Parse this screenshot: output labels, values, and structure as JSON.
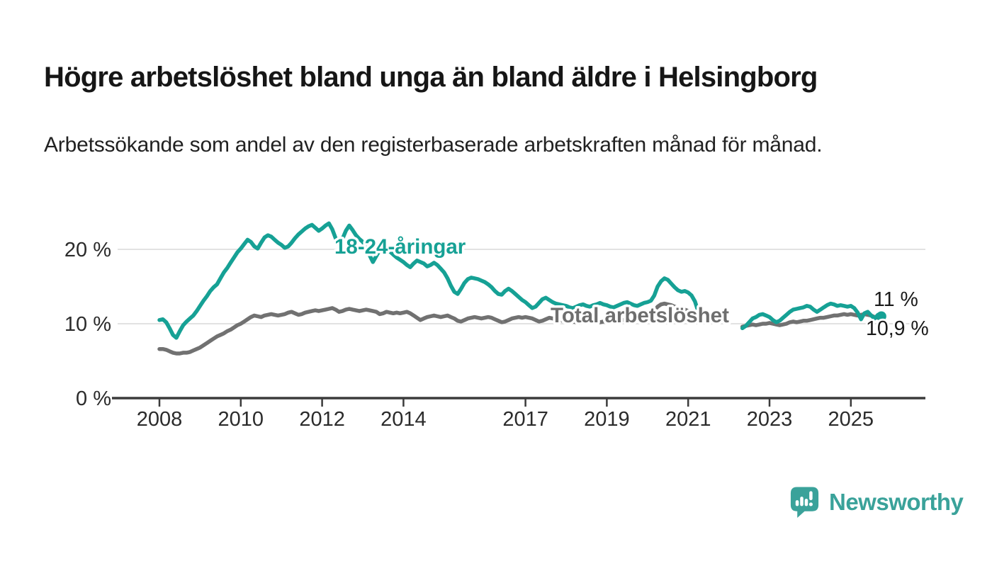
{
  "header": {
    "title": "Högre arbetslöshet bland unga än bland äldre i Helsingborg",
    "subtitle": "Arbetssökande som andel av den registerbaserade arbetskraften månad för månad."
  },
  "chart_data": {
    "type": "line",
    "title": "Högre arbetslöshet bland unga än bland äldre i Helsingborg",
    "subtitle": "Arbetssökande som andel av den registerbaserade arbetskraften månad för månad.",
    "unit": "%",
    "frequency": "monthly",
    "x_start": {
      "year": 2008,
      "month": 1
    },
    "x_end": {
      "year": 2025,
      "month": 10
    },
    "data_gap": {
      "from": "2021-05",
      "to": "2022-04"
    },
    "grid": "horizontal",
    "legend_position": "inline-labels",
    "ylim": [
      0,
      25.5
    ],
    "x_ticks": [
      "2008",
      "2010",
      "2012",
      "2014",
      "2017",
      "2019",
      "2021",
      "2023",
      "2025"
    ],
    "x_tick_years": [
      2008,
      2010,
      2012,
      2014,
      2017,
      2019,
      2021,
      2023,
      2025
    ],
    "y_ticks": [
      {
        "value": 0,
        "label": "0 %"
      },
      {
        "value": 10,
        "label": "10 %"
      },
      {
        "value": 20,
        "label": "20 %"
      }
    ],
    "series": [
      {
        "name": "Total arbetslöshet",
        "color": "#717171",
        "label_color": "#6e6e6e",
        "end_label": "10,9 %",
        "end_dot": false,
        "values": [
          6.6,
          6.6,
          6.5,
          6.3,
          6.1,
          6.0,
          6.0,
          6.1,
          6.1,
          6.2,
          6.4,
          6.6,
          6.8,
          7.1,
          7.4,
          7.7,
          8.0,
          8.3,
          8.5,
          8.7,
          9.0,
          9.2,
          9.5,
          9.8,
          10.0,
          10.3,
          10.6,
          10.9,
          11.1,
          11.0,
          10.9,
          11.1,
          11.2,
          11.3,
          11.2,
          11.1,
          11.2,
          11.3,
          11.5,
          11.6,
          11.4,
          11.2,
          11.3,
          11.5,
          11.6,
          11.7,
          11.8,
          11.7,
          11.8,
          11.9,
          12.0,
          12.1,
          11.9,
          11.6,
          11.7,
          11.9,
          12.0,
          11.9,
          11.8,
          11.7,
          11.8,
          11.9,
          11.8,
          11.7,
          11.6,
          11.3,
          11.4,
          11.6,
          11.5,
          11.4,
          11.5,
          11.4,
          11.5,
          11.6,
          11.4,
          11.1,
          10.8,
          10.5,
          10.7,
          10.9,
          11.0,
          11.1,
          11.0,
          10.9,
          11.0,
          11.1,
          10.9,
          10.7,
          10.4,
          10.3,
          10.5,
          10.7,
          10.8,
          10.9,
          10.8,
          10.7,
          10.8,
          10.9,
          10.8,
          10.6,
          10.4,
          10.2,
          10.3,
          10.5,
          10.7,
          10.8,
          10.9,
          10.8,
          10.9,
          10.8,
          10.7,
          10.5,
          10.3,
          10.4,
          10.6,
          10.8,
          10.7,
          10.6,
          10.5,
          10.4,
          10.5,
          10.4,
          10.3,
          10.2,
          10.1,
          10.2,
          10.4,
          10.5,
          10.4,
          10.3,
          10.2,
          10.3,
          10.4,
          10.3,
          10.2,
          10.3,
          10.4,
          10.5,
          10.7,
          10.8,
          10.7,
          10.6,
          10.7,
          10.8,
          11.0,
          11.3,
          11.7,
          12.3,
          12.6,
          12.7,
          12.6,
          12.5,
          12.3,
          12.1,
          12.0,
          11.9,
          11.7,
          11.5,
          11.2,
          10.9,
          null,
          null,
          null,
          null,
          null,
          null,
          null,
          null,
          null,
          null,
          null,
          null,
          9.6,
          9.7,
          9.8,
          9.9,
          9.8,
          9.9,
          10.0,
          10.0,
          10.1,
          10.0,
          9.9,
          9.8,
          9.9,
          10.0,
          10.2,
          10.3,
          10.2,
          10.3,
          10.4,
          10.4,
          10.5,
          10.6,
          10.7,
          10.8,
          10.8,
          10.9,
          11.0,
          11.1,
          11.1,
          11.2,
          11.3,
          11.2,
          11.3,
          11.2,
          11.1,
          11.2,
          11.3,
          11.2,
          11.1,
          10.9,
          10.8,
          10.9
        ]
      },
      {
        "name": "18-24-åringar",
        "color": "#16a195",
        "label_color": "#16a195",
        "end_label": "11 %",
        "end_dot": true,
        "values": [
          10.5,
          10.6,
          10.2,
          9.4,
          8.5,
          8.1,
          9.0,
          9.8,
          10.3,
          10.7,
          11.1,
          11.7,
          12.4,
          13.1,
          13.7,
          14.4,
          14.9,
          15.3,
          16.1,
          16.9,
          17.5,
          18.2,
          18.9,
          19.6,
          20.1,
          20.7,
          21.3,
          21.0,
          20.4,
          20.1,
          20.9,
          21.6,
          21.9,
          21.7,
          21.3,
          20.9,
          20.6,
          20.2,
          20.4,
          20.9,
          21.5,
          22.0,
          22.4,
          22.8,
          23.1,
          23.3,
          22.9,
          22.5,
          22.8,
          23.2,
          23.5,
          22.7,
          21.5,
          20.5,
          21.4,
          22.5,
          23.2,
          22.6,
          21.9,
          21.4,
          21.0,
          20.3,
          19.2,
          18.3,
          19.1,
          19.9,
          20.4,
          20.1,
          19.7,
          19.3,
          18.9,
          18.6,
          18.3,
          17.9,
          17.6,
          18.1,
          18.5,
          18.3,
          18.1,
          17.7,
          17.9,
          18.2,
          17.9,
          17.4,
          16.9,
          16.1,
          15.1,
          14.3,
          14.0,
          14.7,
          15.5,
          16.0,
          16.2,
          16.1,
          16.0,
          15.8,
          15.6,
          15.3,
          14.9,
          14.4,
          14.0,
          13.9,
          14.4,
          14.7,
          14.4,
          14.0,
          13.6,
          13.2,
          12.9,
          12.5,
          12.1,
          12.3,
          12.8,
          13.3,
          13.5,
          13.2,
          12.9,
          12.7,
          12.6,
          12.5,
          12.4,
          12.2,
          12.1,
          12.3,
          12.5,
          12.6,
          12.4,
          12.3,
          12.5,
          12.6,
          12.8,
          12.6,
          12.5,
          12.3,
          12.2,
          12.4,
          12.6,
          12.8,
          12.9,
          12.7,
          12.5,
          12.4,
          12.6,
          12.8,
          12.9,
          13.1,
          13.8,
          15.0,
          15.7,
          16.1,
          15.9,
          15.4,
          14.9,
          14.5,
          14.3,
          14.4,
          14.2,
          13.8,
          13.0,
          11.6,
          null,
          null,
          null,
          null,
          null,
          null,
          null,
          null,
          null,
          null,
          null,
          null,
          9.4,
          9.7,
          10.2,
          10.7,
          10.9,
          11.2,
          11.3,
          11.1,
          10.9,
          10.5,
          10.2,
          10.4,
          10.8,
          11.2,
          11.6,
          11.9,
          12.0,
          12.1,
          12.2,
          12.4,
          12.3,
          11.9,
          11.6,
          11.9,
          12.2,
          12.5,
          12.7,
          12.6,
          12.4,
          12.5,
          12.4,
          12.3,
          12.4,
          12.1,
          11.5,
          10.6,
          11.4,
          11.6,
          11.1,
          10.7,
          11.2,
          11.0
        ]
      }
    ]
  },
  "footer": {
    "brand": "Newsworthy",
    "brand_color": "#3aa29a",
    "logo_icon": "bar-chart-speech-bubble"
  }
}
